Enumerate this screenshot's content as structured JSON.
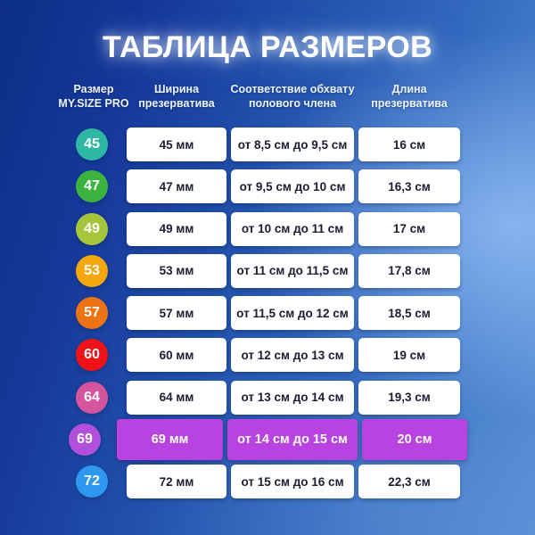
{
  "title": "ТАБЛИЦА РАЗМЕРОВ",
  "header": {
    "columns": [
      {
        "line1": "Размер",
        "line2": "MY.SIZE PRO"
      },
      {
        "line1": "Ширина",
        "line2": "презерватива"
      },
      {
        "line1": "Соответствие обхвату",
        "line2": "полового члена"
      },
      {
        "line1": "Длина",
        "line2": "презерватива"
      }
    ]
  },
  "colors": {
    "highlight_cell": "#b843e0",
    "cell_text": "#1b1d33",
    "background_top_left": "#0d2e86",
    "background_right": "#6f9de2"
  },
  "chart_data": {
    "type": "table",
    "title": "ТАБЛИЦА РАЗМЕРОВ",
    "columns": [
      "Размер MY.SIZE PRO",
      "Ширина презерватива",
      "Соответствие обхвату полового члена",
      "Длина презерватива"
    ],
    "highlighted_size": "69",
    "rows": [
      {
        "size": "45",
        "badge_color": "#2eb8a3",
        "width": "45 мм",
        "girth": "от 8,5 см до 9,5 см",
        "length": "16 см",
        "highlight": false
      },
      {
        "size": "47",
        "badge_color": "#3cb33e",
        "width": "47 мм",
        "girth": "от 9,5 см до 10 см",
        "length": "16,3 см",
        "highlight": false
      },
      {
        "size": "49",
        "badge_color": "#a5c63a",
        "width": "49 мм",
        "girth": "от 10 см до 11 см",
        "length": "17 см",
        "highlight": false
      },
      {
        "size": "53",
        "badge_color": "#f5a70e",
        "width": "53 мм",
        "girth": "от 11 см до 11,5 см",
        "length": "17,8 см",
        "highlight": false
      },
      {
        "size": "57",
        "badge_color": "#ec7414",
        "width": "57 мм",
        "girth": "от 11,5 см до 12 см",
        "length": "18,5 см",
        "highlight": false
      },
      {
        "size": "60",
        "badge_color": "#ef1317",
        "width": "60 мм",
        "girth": "от 12 см до 13 см",
        "length": "19 см",
        "highlight": false
      },
      {
        "size": "64",
        "badge_color": "#d4549d",
        "width": "64 мм",
        "girth": "от 13 см до 14 см",
        "length": "19,3 см",
        "highlight": false
      },
      {
        "size": "69",
        "badge_color": "#b150dc",
        "width": "69 мм",
        "girth": "от 14 см до 15 см",
        "length": "20 см",
        "highlight": true
      },
      {
        "size": "72",
        "badge_color": "#2e98f0",
        "width": "72 мм",
        "girth": "от 15 см до 16 см",
        "length": "22,3 см",
        "highlight": false
      }
    ]
  }
}
